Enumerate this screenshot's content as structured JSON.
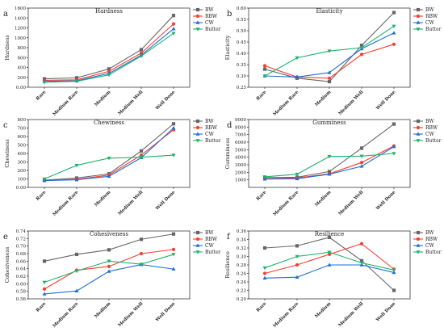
{
  "colors": {
    "BW": "#666666",
    "RBW": "#ff3b30",
    "CW": "#1f6fd6",
    "Butter": "#1db36a"
  },
  "markers": {
    "BW": "square",
    "RBW": "circle",
    "CW": "triangle-up",
    "Butter": "triangle-down"
  },
  "chart_data": [
    {
      "id": "a",
      "type": "line",
      "panel_label": "a",
      "title": "Hardness",
      "xlabel": "",
      "ylabel": "Hardness",
      "categories": [
        "Rare",
        "Medium Rare",
        "Medium",
        "Medium Well",
        "Well Done"
      ],
      "ylim": [
        0,
        1600
      ],
      "yticks": [
        0,
        200,
        400,
        600,
        800,
        1000,
        1200,
        1400,
        1600
      ],
      "legend_position": "top-right",
      "series": [
        {
          "name": "BW",
          "values": [
            170,
            190,
            370,
            760,
            1450
          ]
        },
        {
          "name": "RBW",
          "values": [
            140,
            150,
            320,
            690,
            1280
          ]
        },
        {
          "name": "CW",
          "values": [
            120,
            130,
            280,
            650,
            1180
          ]
        },
        {
          "name": "Butter",
          "values": [
            100,
            120,
            250,
            630,
            1090
          ]
        }
      ]
    },
    {
      "id": "b",
      "type": "line",
      "panel_label": "b",
      "title": "Elasticity",
      "xlabel": "",
      "ylabel": "Elasticity",
      "categories": [
        "Rare",
        "Medium Rare",
        "Medium",
        "Medium Well",
        "Well Done"
      ],
      "ylim": [
        0.25,
        0.6
      ],
      "yticks": [
        0.25,
        0.3,
        0.35,
        0.4,
        0.45,
        0.5,
        0.55,
        0.6
      ],
      "legend_position": "top-right",
      "series": [
        {
          "name": "BW",
          "values": [
            0.33,
            0.29,
            0.275,
            0.435,
            0.58
          ]
        },
        {
          "name": "RBW",
          "values": [
            0.345,
            0.295,
            0.29,
            0.395,
            0.44
          ]
        },
        {
          "name": "CW",
          "values": [
            0.3,
            0.295,
            0.315,
            0.42,
            0.49
          ]
        },
        {
          "name": "Butter",
          "values": [
            0.3,
            0.38,
            0.41,
            0.425,
            0.52
          ]
        }
      ]
    },
    {
      "id": "c",
      "type": "line",
      "panel_label": "c",
      "title": "Chewiness",
      "xlabel": "",
      "ylabel": "Chewiness",
      "categories": [
        "Rare",
        "Medium Rare",
        "Medium",
        "Medium Well",
        "Well Done"
      ],
      "ylim": [
        0,
        800
      ],
      "yticks": [
        0,
        100,
        200,
        300,
        400,
        500,
        600,
        700,
        800
      ],
      "legend_position": "top-right",
      "series": [
        {
          "name": "BW",
          "values": [
            85,
            110,
            160,
            430,
            750
          ]
        },
        {
          "name": "RBW",
          "values": [
            80,
            95,
            145,
            380,
            680
          ]
        },
        {
          "name": "CW",
          "values": [
            80,
            90,
            130,
            350,
            700
          ]
        },
        {
          "name": "Butter",
          "values": [
            100,
            260,
            345,
            355,
            380
          ]
        }
      ]
    },
    {
      "id": "d",
      "type": "line",
      "panel_label": "d",
      "title": "Gumminess",
      "xlabel": "",
      "ylabel": "Gumminess",
      "categories": [
        "Rare",
        "Medium Rare",
        "Medium",
        "Medium Well",
        "Well Done"
      ],
      "ylim": [
        0,
        9000
      ],
      "yticks": [
        1000,
        2000,
        3000,
        4000,
        5000,
        6000,
        7000,
        8000,
        9000
      ],
      "legend_position": "top-right",
      "series": [
        {
          "name": "BW",
          "values": [
            1300,
            1350,
            2100,
            5200,
            8400
          ]
        },
        {
          "name": "RBW",
          "values": [
            1150,
            1250,
            1800,
            3300,
            5500
          ]
        },
        {
          "name": "CW",
          "values": [
            1100,
            1150,
            1750,
            2800,
            5400
          ]
        },
        {
          "name": "Butter",
          "values": [
            1400,
            1750,
            4100,
            4150,
            4500
          ]
        }
      ]
    },
    {
      "id": "e",
      "type": "line",
      "panel_label": "e",
      "title": "Cohesiveness",
      "xlabel": "",
      "ylabel": "Cohesiveness",
      "categories": [
        "Rare",
        "Medium Rare",
        "Medium",
        "Medium Well",
        "Well Done"
      ],
      "ylim": [
        0.56,
        0.74
      ],
      "yticks": [
        0.56,
        0.58,
        0.6,
        0.62,
        0.64,
        0.66,
        0.68,
        0.7,
        0.72,
        0.74
      ],
      "legend_position": "top-right",
      "series": [
        {
          "name": "BW",
          "values": [
            0.66,
            0.678,
            0.69,
            0.718,
            0.732
          ]
        },
        {
          "name": "RBW",
          "values": [
            0.586,
            0.636,
            0.646,
            0.68,
            0.691
          ]
        },
        {
          "name": "CW",
          "values": [
            0.573,
            0.581,
            0.633,
            0.651,
            0.639
          ]
        },
        {
          "name": "Butter",
          "values": [
            0.604,
            0.634,
            0.66,
            0.652,
            0.678
          ]
        }
      ]
    },
    {
      "id": "f",
      "type": "line",
      "panel_label": "f",
      "title": "Resilience",
      "xlabel": "",
      "ylabel": "Resilience",
      "categories": [
        "Rare",
        "Medium Rare",
        "Medium",
        "Medium Well",
        "Well Done"
      ],
      "ylim": [
        0.2,
        0.36
      ],
      "yticks": [
        0.2,
        0.22,
        0.24,
        0.26,
        0.28,
        0.3,
        0.32,
        0.34,
        0.36
      ],
      "legend_position": "top-right",
      "series": [
        {
          "name": "BW",
          "values": [
            0.32,
            0.325,
            0.345,
            0.29,
            0.22
          ]
        },
        {
          "name": "RBW",
          "values": [
            0.26,
            0.28,
            0.305,
            0.33,
            0.27
          ]
        },
        {
          "name": "CW",
          "values": [
            0.249,
            0.251,
            0.28,
            0.28,
            0.262
          ]
        },
        {
          "name": "Butter",
          "values": [
            0.273,
            0.3,
            0.31,
            0.285,
            0.268
          ]
        }
      ]
    }
  ]
}
